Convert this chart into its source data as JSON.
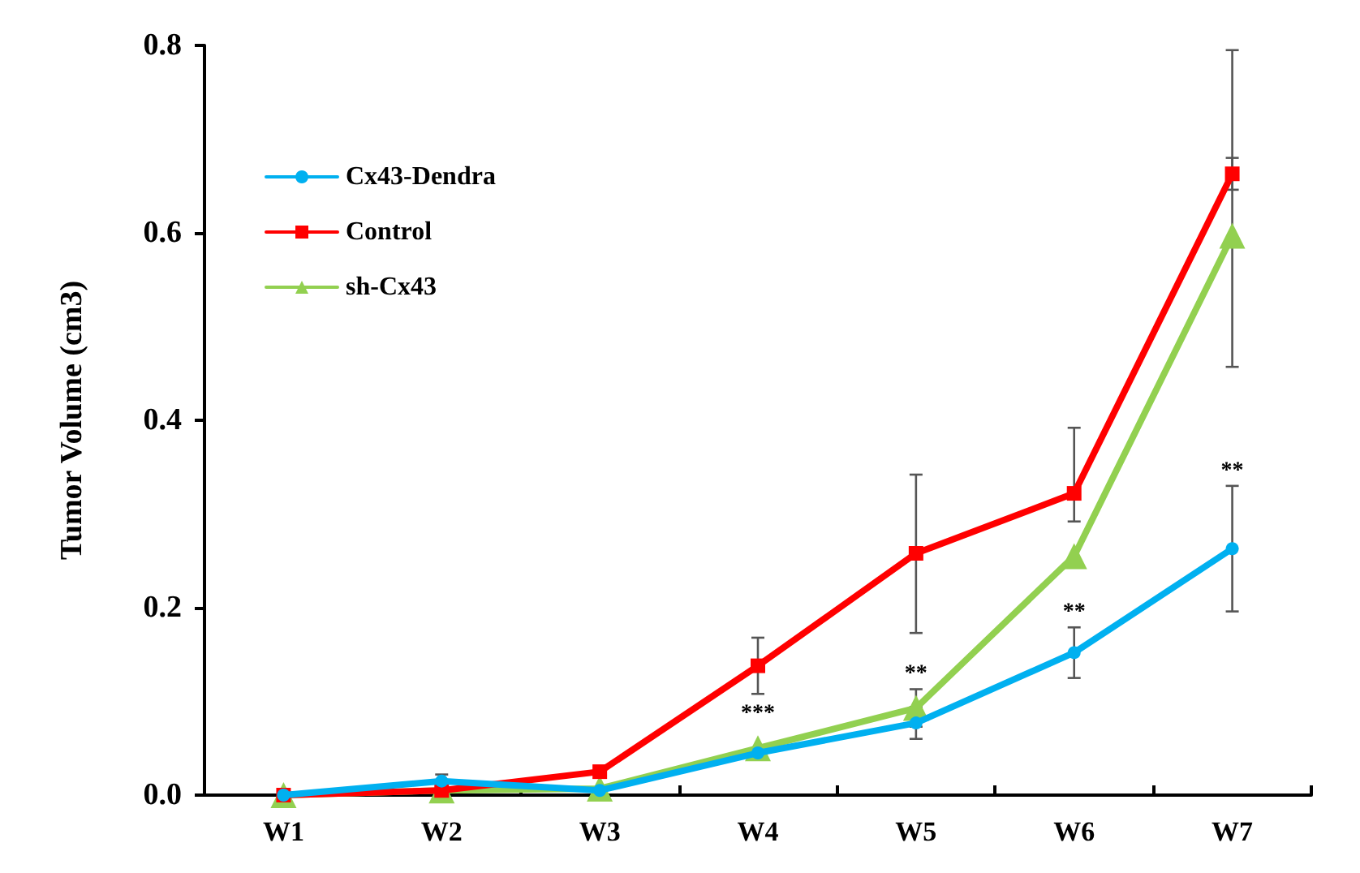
{
  "chart_data": {
    "type": "line",
    "ylabel": "Tumor Volume (cm3)",
    "categories": [
      "W1",
      "W2",
      "W3",
      "W4",
      "W5",
      "W6",
      "W7"
    ],
    "series": [
      {
        "name": "Cx43-Dendra",
        "color": "#00b0f0",
        "marker": "circle",
        "values": [
          0,
          0.015,
          0.005,
          0.045,
          0.077,
          0.152,
          0.263
        ],
        "errors": [
          null,
          0.007,
          null,
          null,
          0.017,
          0.027,
          0.067
        ]
      },
      {
        "name": "Control",
        "color": "#ff0000",
        "marker": "square",
        "values": [
          0,
          0.005,
          0.025,
          0.138,
          0.258,
          0.322,
          0.663
        ],
        "errors": [
          null,
          null,
          null,
          0.03,
          [
            0.173,
            0.342
          ],
          [
            0.292,
            0.392
          ],
          0.017
        ]
      },
      {
        "name": "sh-Cx43",
        "color": "#92d050",
        "marker": "triangle",
        "values": [
          0,
          0.005,
          0.007,
          0.05,
          0.093,
          0.255,
          0.597
        ],
        "errors": [
          null,
          null,
          null,
          null,
          0.02,
          null,
          [
            0.457,
            0.795
          ]
        ]
      }
    ],
    "ylim": [
      0,
      0.8
    ],
    "yticks": [
      {
        "value": 0,
        "label": "0.0"
      },
      {
        "value": 0.2,
        "label": "0.2"
      },
      {
        "value": 0.4,
        "label": "0.4"
      },
      {
        "value": 0.6,
        "label": "0.6"
      },
      {
        "value": 0.8,
        "label": "0.8"
      }
    ],
    "annotations": [
      "***",
      "**",
      "**",
      "**"
    ],
    "grid": false,
    "legend": "top left",
    "line_style": "solid"
  }
}
